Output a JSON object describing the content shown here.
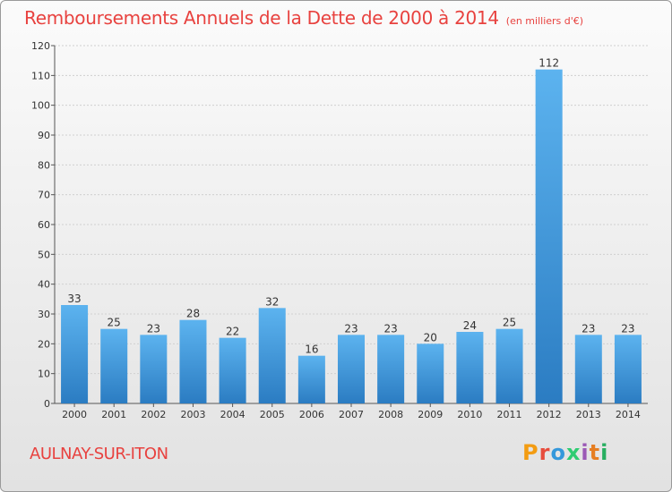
{
  "header": {
    "title": "Remboursements Annuels de la Dette de 2000 à 2014",
    "subtitle": "(en milliers d'€)"
  },
  "footer": {
    "city": "AULNAY-SUR-ITON",
    "brand": "Proxiti",
    "brand_colors": [
      "#f39c12",
      "#e74c3c",
      "#3498db",
      "#2ecc71",
      "#9b59b6",
      "#e67e22",
      "#27ae60"
    ]
  },
  "colors": {
    "bar_top": "#5cb3ef",
    "bar_bottom": "#2b7cc2",
    "title": "#e8423f",
    "grid": "#d0d0d0"
  },
  "chart_data": {
    "type": "bar",
    "title": "Remboursements Annuels de la Dette de 2000 à 2014",
    "xlabel": "",
    "ylabel": "",
    "categories": [
      "2000",
      "2001",
      "2002",
      "2003",
      "2004",
      "2005",
      "2006",
      "2007",
      "2008",
      "2009",
      "2010",
      "2011",
      "2012",
      "2013",
      "2014"
    ],
    "values": [
      33,
      25,
      23,
      28,
      22,
      32,
      16,
      23,
      23,
      20,
      24,
      25,
      112,
      23,
      23
    ],
    "ylim": [
      0,
      120
    ],
    "yticks": [
      0,
      10,
      20,
      30,
      40,
      50,
      60,
      70,
      80,
      90,
      100,
      110,
      120
    ],
    "grid": true
  }
}
